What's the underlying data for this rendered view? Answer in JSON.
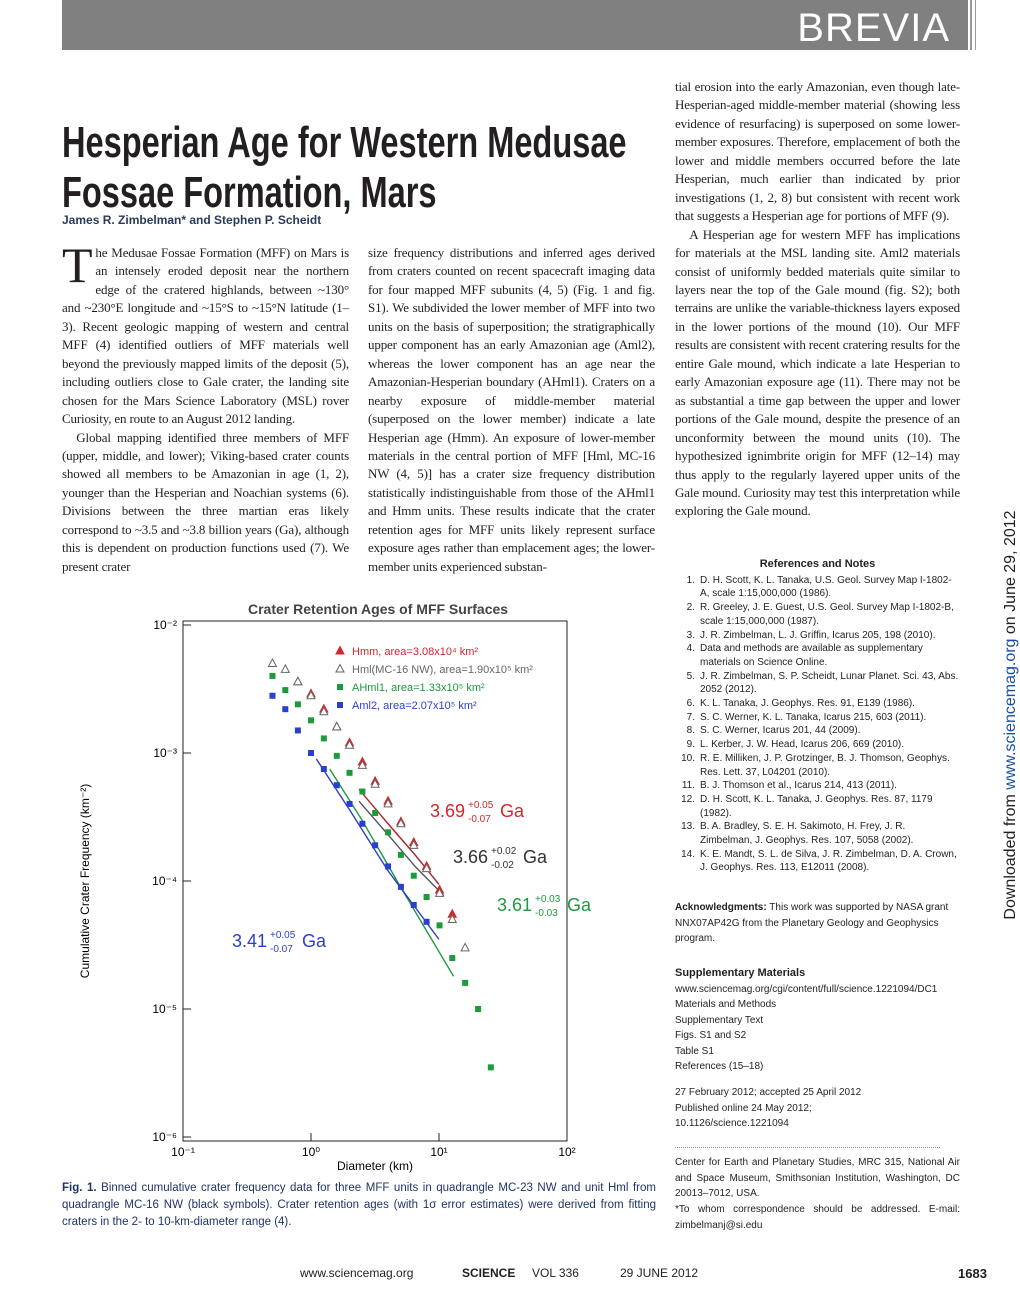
{
  "header": {
    "section": "BREVIA"
  },
  "article": {
    "title_lines": [
      "Hesperian Age for Western Medusae",
      "Fossae Formation, Mars"
    ],
    "authors": "James R. Zimbelman* and Stephen P. Scheidt",
    "column_1": [
      {
        "drop_cap": "T",
        "text": "he Medusae Fossae Formation (MFF) on Mars is an intensely eroded deposit near the northern edge of the cratered highlands, between ~130° and ~230°E longitude and ~15°S to ~15°N latitude (1–3). Recent geologic mapping of western and central MFF (4) identified outliers of MFF materials well beyond the previously mapped limits of the deposit (5), including outliers close to Gale crater, the landing site chosen for the Mars Science Laboratory (MSL) rover Curiosity, en route to an August 2012 landing."
      },
      {
        "text": "Global mapping identified three members of MFF (upper, middle, and lower); Viking-based crater counts showed all members to be Amazonian in age (1, 2), younger than the Hesperian and Noachian systems (6). Divisions between the three martian eras likely correspond to ~3.5 and ~3.8 billion years (Ga), although this is dependent on production functions used (7). We present crater"
      }
    ],
    "column_2": [
      {
        "text": "size frequency distributions and inferred ages derived from craters counted on recent spacecraft imaging data for four mapped MFF subunits (4, 5) (Fig. 1 and fig. S1). We subdivided the lower member of MFF into two units on the basis of superposition; the stratigraphically upper component has an early Amazonian age (Aml2), whereas the lower component has an age near the Amazonian-Hesperian boundary (AHml1). Craters on a nearby exposure of middle-member material (superposed on the lower member) indicate a late Hesperian age (Hmm). An exposure of lower-member materials in the central portion of MFF [Hml, MC-16 NW (4, 5)] has a crater size frequency distribution statistically indistinguishable from those of the AHml1 and Hmm units. These results indicate that the crater retention ages for MFF units likely represent surface exposure ages rather than emplacement ages; the lower-member units experienced substan-"
      }
    ],
    "column_3": [
      {
        "text": "tial erosion into the early Amazonian, even though late-Hesperian-aged middle-member material (showing less evidence of resurfacing) is superposed on some lower-member exposures. Therefore, emplacement of both the lower and middle members occurred before the late Hesperian, much earlier than indicated by prior investigations (1, 2, 8) but consistent with recent work that suggests a Hesperian age for portions of MFF (9)."
      },
      {
        "text": "A Hesperian age for western MFF has implications for materials at the MSL landing site. Aml2 materials consist of uniformly bedded materials quite similar to layers near the top of the Gale mound (fig. S2); both terrains are unlike the variable-thickness layers exposed in the lower portions of the mound (10). Our MFF results are consistent with recent cratering results for the entire Gale mound, which indicate a late Hesperian to early Amazonian exposure age (11). There may not be as substantial a time gap between the upper and lower portions of the Gale mound, despite the presence of an unconformity between the mound units (10). The hypothesized ignimbrite origin for MFF (12–14) may thus apply to the regularly layered upper units of the Gale mound. Curiosity may test this interpretation while exploring the Gale mound."
      }
    ]
  },
  "chart_data": {
    "type": "scatter",
    "title": "Crater Retention Ages of MFF Surfaces",
    "x_label": "Diameter (km)",
    "y_label": "Cumulative Crater Frequency (km⁻²)",
    "log_x": true,
    "log_y": true,
    "xlim": [
      0.1,
      100
    ],
    "ylim": [
      1e-06,
      0.01
    ],
    "xticks": [
      {
        "value": 0.1,
        "label": "10⁻¹"
      },
      {
        "value": 1,
        "label": "10⁰"
      },
      {
        "value": 10,
        "label": "10¹"
      },
      {
        "value": 100,
        "label": "10²"
      }
    ],
    "yticks": [
      {
        "value": 1e-06,
        "label": "10⁻⁶"
      },
      {
        "value": 1e-05,
        "label": "10⁻⁵"
      },
      {
        "value": 0.0001,
        "label": "10⁻⁴"
      },
      {
        "value": 0.001,
        "label": "10⁻³"
      },
      {
        "value": 0.01,
        "label": "10⁻²"
      }
    ],
    "series": [
      {
        "name": "Hmm, area=3.08x10⁴ km²",
        "color": "#d4262b",
        "marker": "triangle",
        "x": [
          0.79,
          1.0,
          1.26,
          1.59,
          2.0,
          2.52,
          3.17,
          4.0,
          5.04,
          6.35,
          8.0,
          10.1,
          12.7
        ],
        "values": [
          0.0036,
          0.0029,
          0.0022,
          0.0016,
          0.0012,
          0.00085,
          0.0006,
          0.00042,
          0.00029,
          0.0002,
          0.00013,
          8.5e-05,
          5.5e-05
        ]
      },
      {
        "name": "Hml(MC-16 NW), area=1.90x10⁵ km²",
        "color": "#666666",
        "marker": "triangle-open",
        "x": [
          0.5,
          0.63,
          0.79,
          1.0,
          1.26,
          1.59,
          2.0,
          2.52,
          3.17,
          4.0,
          5.04,
          6.35,
          8.0,
          10.1,
          12.7,
          16.0
        ],
        "values": [
          0.005,
          0.0045,
          0.0036,
          0.0028,
          0.0021,
          0.0016,
          0.00115,
          0.0008,
          0.00057,
          0.0004,
          0.00028,
          0.00019,
          0.000125,
          8e-05,
          5e-05,
          3e-05
        ]
      },
      {
        "name": "AHml1, area=1.33x10⁵ km²",
        "color": "#1d9a3c",
        "marker": "square",
        "x": [
          0.5,
          0.63,
          0.79,
          1.0,
          1.26,
          1.59,
          2.0,
          2.52,
          3.17,
          4.0,
          5.04,
          6.35,
          8.0,
          10.1,
          12.7,
          16.0,
          20.2,
          25.4
        ],
        "values": [
          0.004,
          0.0031,
          0.0024,
          0.0018,
          0.0013,
          0.00095,
          0.0007,
          0.0005,
          0.00034,
          0.00024,
          0.00016,
          0.00011,
          7.5e-05,
          4.5e-05,
          2.5e-05,
          1.6e-05,
          1e-05,
          3.5e-06
        ]
      },
      {
        "name": "Aml2, area=2.07x10⁵ km²",
        "color": "#2b3fcf",
        "marker": "square",
        "x": [
          0.5,
          0.63,
          0.79,
          1.0,
          1.26,
          1.59,
          2.0,
          2.52,
          3.17,
          4.0,
          5.04,
          6.35,
          8.0
        ],
        "values": [
          0.0028,
          0.0022,
          0.0015,
          0.001,
          0.00075,
          0.00056,
          0.0004,
          0.00028,
          0.00019,
          0.00013,
          9e-05,
          6.5e-05,
          4.8e-05
        ]
      }
    ],
    "isochrons": [
      {
        "color": "#a8242a",
        "x": [
          2.37,
          4.0,
          6.5,
          10.0
        ],
        "values": [
          0.00052,
          0.00028,
          0.00016,
          9.4e-05
        ]
      },
      {
        "color": "#555555",
        "x": [
          2.37,
          4.0,
          6.5,
          10.9
        ],
        "values": [
          0.00042,
          0.00023,
          0.00013,
          7.7e-05
        ]
      },
      {
        "color": "#1d9a3c",
        "x": [
          1.4,
          2.5,
          5.0,
          13.0
        ],
        "values": [
          0.00075,
          0.0003,
          9e-05,
          1.8e-05
        ]
      },
      {
        "color": "#2b3fcf",
        "x": [
          1.1,
          2.0,
          4.0,
          10.0
        ],
        "values": [
          0.0009,
          0.00036,
          0.00012,
          3.5e-05
        ]
      }
    ],
    "age_labels": [
      {
        "value": "3.69",
        "plus": "+0.05",
        "minus": "-0.07",
        "unit": "Ga",
        "color": "#d4262b"
      },
      {
        "value": "3.66",
        "plus": "+0.02",
        "minus": "-0.02",
        "unit": "Ga",
        "color": "#333333"
      },
      {
        "value": "3.61",
        "plus": "+0.03",
        "minus": "-0.03",
        "unit": "Ga",
        "color": "#1d9a3c"
      },
      {
        "value": "3.41",
        "plus": "+0.05",
        "minus": "-0.07",
        "unit": "Ga",
        "color": "#2b3fcf"
      }
    ]
  },
  "caption": {
    "label": "Fig. 1.",
    "text": "Binned cumulative crater frequency data for three MFF units in quadrangle MC-23 NW and unit Hml from quadrangle MC-16 NW (black symbols). Crater retention ages (with 1σ error estimates) were derived from fitting craters in the 2- to 10-km-diameter range (4)."
  },
  "references": {
    "heading": "References and Notes",
    "items": [
      {
        "number": "1.",
        "text": "D. H. Scott, K. L. Tanaka, U.S. Geol. Survey Map I-1802-A, scale 1:15,000,000 (1986)."
      },
      {
        "number": "2.",
        "text": "R. Greeley, J. E. Guest, U.S. Geol. Survey Map I-1802-B, scale 1:15,000,000 (1987)."
      },
      {
        "number": "3.",
        "text": "J. R. Zimbelman, L. J. Griffin, Icarus 205, 198 (2010)."
      },
      {
        "number": "4.",
        "text": "Data and methods are available as supplementary materials on Science Online."
      },
      {
        "number": "5.",
        "text": "J. R. Zimbelman, S. P. Scheidt, Lunar Planet. Sci. 43, Abs. 2052 (2012)."
      },
      {
        "number": "6.",
        "text": "K. L. Tanaka, J. Geophys. Res. 91, E139 (1986)."
      },
      {
        "number": "7.",
        "text": "S. C. Werner, K. L. Tanaka, Icarus 215, 603 (2011)."
      },
      {
        "number": "8.",
        "text": "S. C. Werner, Icarus 201, 44 (2009)."
      },
      {
        "number": "9.",
        "text": "L. Kerber, J. W. Head, Icarus 206, 669 (2010)."
      },
      {
        "number": "10.",
        "text": "R. E. Milliken, J. P. Grotzinger, B. J. Thomson, Geophys. Res. Lett. 37, L04201 (2010)."
      },
      {
        "number": "11.",
        "text": "B. J. Thomson et al., Icarus 214, 413 (2011)."
      },
      {
        "number": "12.",
        "text": "D. H. Scott, K. L. Tanaka, J. Geophys. Res. 87, 1179 (1982)."
      },
      {
        "number": "13.",
        "text": "B. A. Bradley, S. E. H. Sakimoto, H. Frey, J. R. Zimbelman, J. Geophys. Res. 107, 5058 (2002)."
      },
      {
        "number": "14.",
        "text": "K. E. Mandt, S. L. de Silva, J. R. Zimbelman, D. A. Crown, J. Geophys. Res. 113, E12011 (2008)."
      }
    ]
  },
  "acknowledgments": {
    "label": "Acknowledgments:",
    "text": "This work was supported by NASA grant NNX07AP42G from the Planetary Geology and Geophysics program."
  },
  "supplementary": {
    "heading": "Supplementary Materials",
    "lines": [
      "www.sciencemag.org/cgi/content/full/science.1221094/DC1",
      "Materials and Methods",
      "Supplementary Text",
      "Figs. S1 and S2",
      "Table S1",
      "References (15–18)"
    ]
  },
  "dates": [
    "27 February 2012; accepted 25 April 2012",
    "Published online 24 May 2012;",
    "10.1126/science.1221094"
  ],
  "affiliation": "Center for Earth and Planetary Studies, MRC 315, National Air and Space Museum, Smithsonian Institution, Washington, DC 20013–7012, USA.",
  "correspondence": "*To whom correspondence should be addressed. E-mail: zimbelmanj@si.edu",
  "side_banner": {
    "prefix": "Downloaded from",
    "link": "www.sciencemag.org",
    "suffix": "on June 29, 2012"
  },
  "footer": {
    "url": "www.sciencemag.org",
    "journal": "SCIENCE",
    "volume": "VOL 336",
    "date": "29 JUNE 2012",
    "page": "1683"
  }
}
